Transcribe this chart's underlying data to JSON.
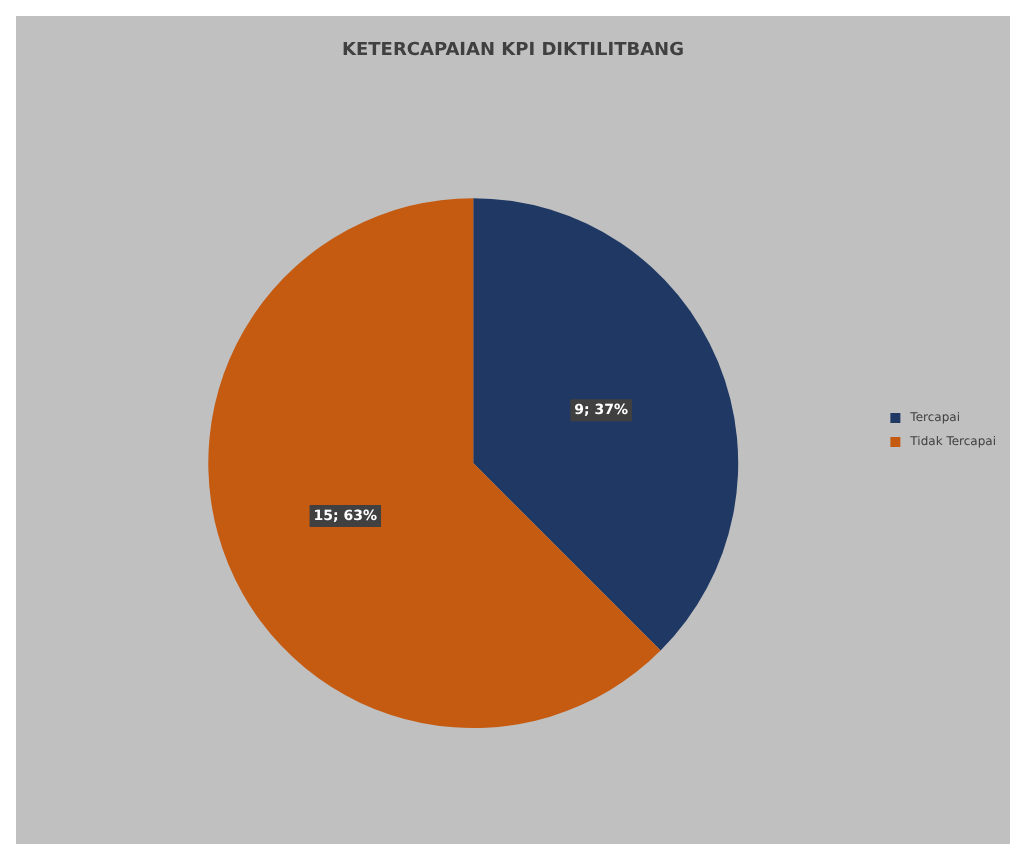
{
  "chart_data": {
    "type": "pie",
    "title": "KETERCAPAIAN KPI DIKTILITBANG",
    "categories": [
      "Tercapai",
      "Tidak Tercapai"
    ],
    "values": [
      9,
      15
    ],
    "colors": [
      "#1f3864",
      "#c55a11"
    ],
    "value_labels": [
      "9; 37%",
      "15; 63%"
    ],
    "legend": "right"
  }
}
